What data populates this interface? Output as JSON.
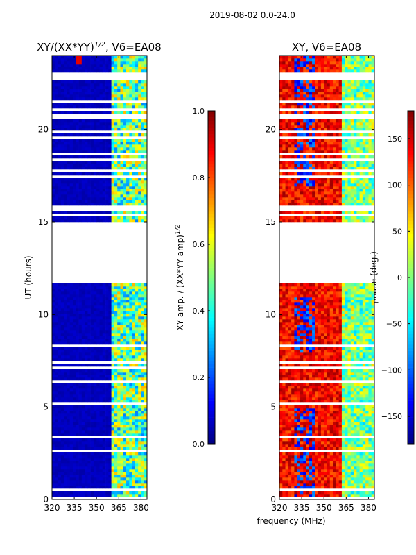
{
  "chart_data": [
    {
      "type": "heatmap",
      "title": "XY/(XX*YY)",
      "title_sup": "1/2",
      "title_suffix": ", V6=EA08",
      "xlabel": "frequency (MHz)",
      "ylabel": "UT (hours)",
      "xlim": [
        320,
        384
      ],
      "ylim": [
        0,
        24
      ],
      "xticks": [
        320,
        335,
        350,
        365,
        380
      ],
      "yticks": [
        0,
        5,
        10,
        15,
        20
      ],
      "colorbar": {
        "label": "XY amp. / (XX*YY amp)",
        "label_sup": "1/2",
        "range": [
          0,
          1
        ],
        "ticks": [
          "0.0",
          "0.2",
          "0.4",
          "0.6",
          "0.8",
          "1.0"
        ],
        "cmap": "jet"
      },
      "regions": [
        {
          "freq": [
            320,
            361
          ],
          "value": 0.05
        },
        {
          "freq": [
            361,
            384
          ],
          "value_range": [
            0.2,
            0.7
          ]
        }
      ],
      "hotspot": {
        "freq": 338,
        "ut": 23.8,
        "value": 0.9
      },
      "flagged_ut_ranges": [
        [
          11.75,
          15.0
        ],
        [
          22.6,
          23.05
        ]
      ]
    },
    {
      "type": "heatmap",
      "title": "XY, V6=EA08",
      "xlabel": "frequency (MHz)",
      "xlim": [
        320,
        384
      ],
      "ylim": [
        0,
        24
      ],
      "xticks": [
        320,
        335,
        350,
        365,
        380
      ],
      "yticks": [
        0,
        5,
        10,
        15,
        20
      ],
      "colorbar": {
        "label": "phase (deg.)",
        "range": [
          -180,
          180
        ],
        "ticks": [
          "−150",
          "−100",
          "−50",
          "0",
          "50",
          "100",
          "150"
        ],
        "cmap": "jet"
      },
      "regions": [
        {
          "freq": [
            320,
            362
          ],
          "value_range": [
            100,
            170
          ]
        },
        {
          "freq": [
            330,
            345
          ],
          "value_range": [
            -150,
            -80
          ]
        },
        {
          "freq": [
            362,
            384
          ],
          "value_range": [
            -60,
            60
          ]
        }
      ],
      "flagged_ut_ranges": [
        [
          11.75,
          15.0
        ],
        [
          22.6,
          23.05
        ]
      ]
    }
  ],
  "suptitle": "2019-08-02 0.0-24.0"
}
